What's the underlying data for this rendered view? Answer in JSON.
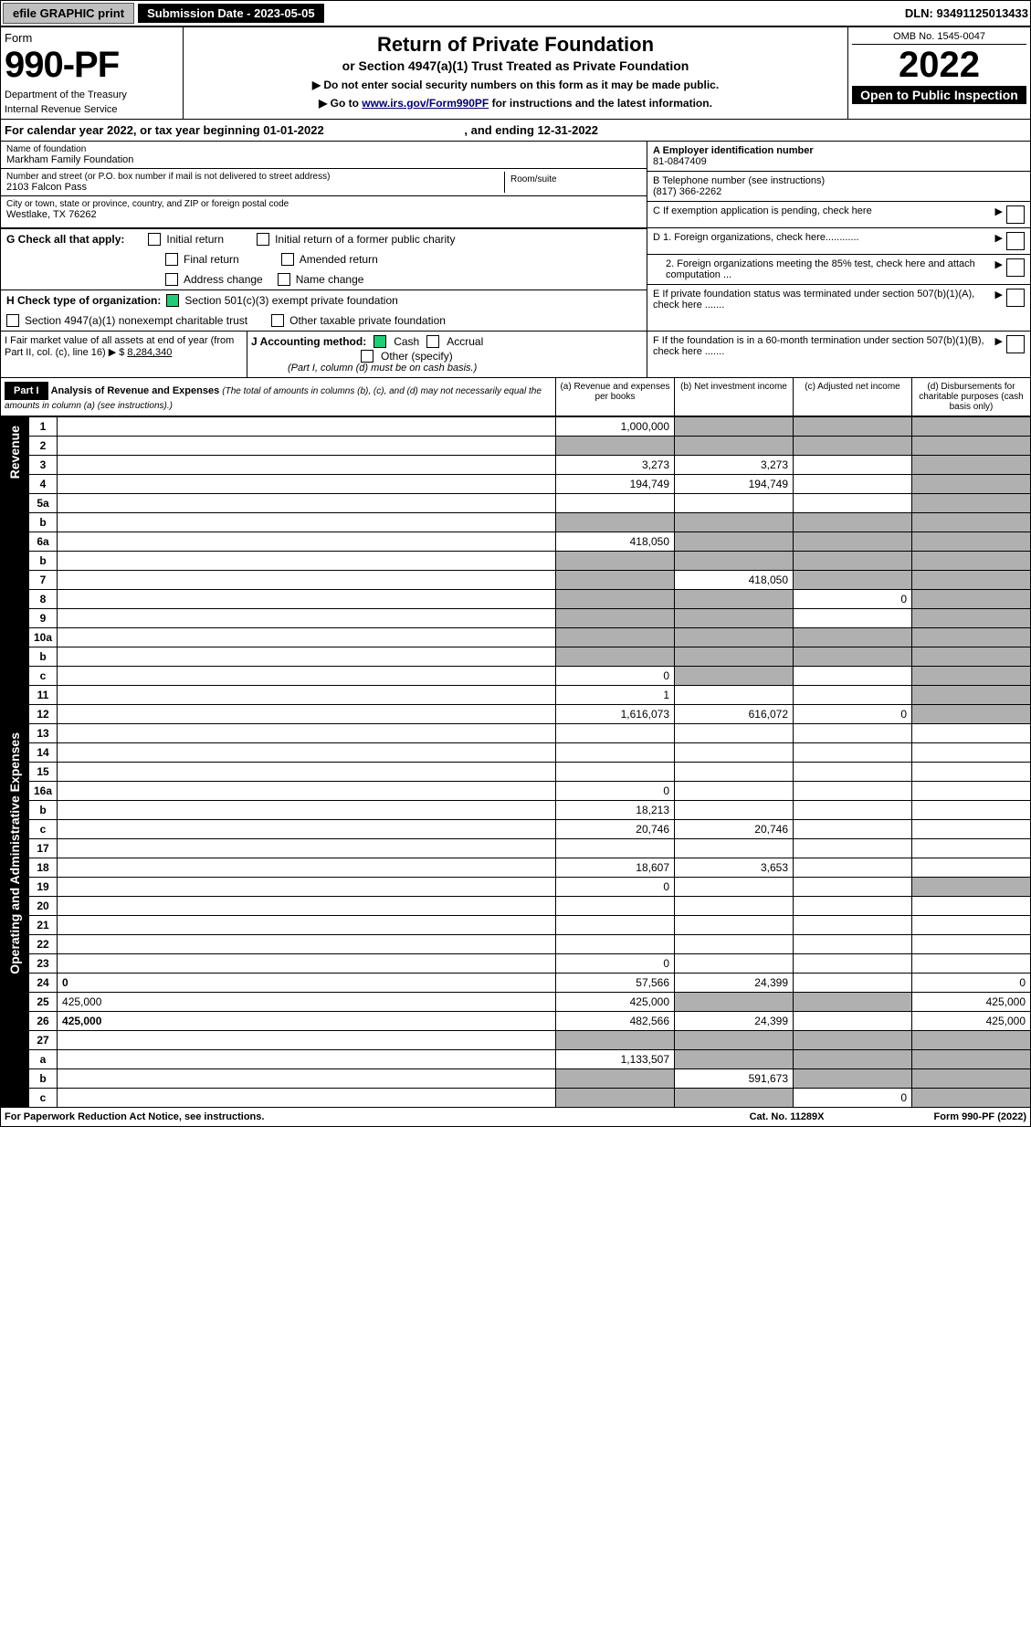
{
  "topbar": {
    "efile": "efile GRAPHIC print",
    "submission": "Submission Date - 2023-05-05",
    "dln": "DLN: 93491125013433"
  },
  "header": {
    "form": "Form",
    "formnum": "990-PF",
    "dept": "Department of the Treasury",
    "irs": "Internal Revenue Service",
    "title": "Return of Private Foundation",
    "sub1": "or Section 4947(a)(1) Trust Treated as Private Foundation",
    "sub2a": "▶ Do not enter social security numbers on this form as it may be made public.",
    "sub2b": "▶ Go to ",
    "link": "www.irs.gov/Form990PF",
    "sub2c": " for instructions and the latest information.",
    "omb": "OMB No. 1545-0047",
    "year": "2022",
    "open": "Open to Public Inspection"
  },
  "calyear": {
    "a": "For calendar year 2022, or tax year beginning 01-01-2022",
    "b": ", and ending 12-31-2022"
  },
  "entity": {
    "name_label": "Name of foundation",
    "name": "Markham Family Foundation",
    "addr_label": "Number and street (or P.O. box number if mail is not delivered to street address)",
    "addr": "2103 Falcon Pass",
    "room_label": "Room/suite",
    "city_label": "City or town, state or province, country, and ZIP or foreign postal code",
    "city": "Westlake, TX  76262"
  },
  "right": {
    "a_label": "A Employer identification number",
    "a": "81-0847409",
    "b_label": "B Telephone number (see instructions)",
    "b": "(817) 366-2262",
    "c": "C If exemption application is pending, check here",
    "d1": "D 1. Foreign organizations, check here............",
    "d2": "2. Foreign organizations meeting the 85% test, check here and attach computation ...",
    "e": "E  If private foundation status was terminated under section 507(b)(1)(A), check here .......",
    "f": "F  If the foundation is in a 60-month termination under section 507(b)(1)(B), check here ......."
  },
  "g": {
    "label": "G Check all that apply:",
    "initial": "Initial return",
    "initial_former": "Initial return of a former public charity",
    "final": "Final return",
    "amended": "Amended return",
    "addrchg": "Address change",
    "namechg": "Name change"
  },
  "h": {
    "label": "H Check type of organization:",
    "c3": "Section 501(c)(3) exempt private foundation",
    "4947": "Section 4947(a)(1) nonexempt charitable trust",
    "other_tax": "Other taxable private foundation"
  },
  "i": {
    "label": "I Fair market value of all assets at end of year (from Part II, col. (c), line 16) ▶ $",
    "val": "8,284,340"
  },
  "j": {
    "label": "J Accounting method:",
    "cash": "Cash",
    "accrual": "Accrual",
    "other": "Other (specify)",
    "note": "(Part I, column (d) must be on cash basis.)"
  },
  "part1": {
    "label": "Part I",
    "title": "Analysis of Revenue and Expenses",
    "note": "(The total of amounts in columns (b), (c), and (d) may not necessarily equal the amounts in column (a) (see instructions).)",
    "cola": "(a)  Revenue and expenses per books",
    "colb": "(b)  Net investment income",
    "colc": "(c)  Adjusted net income",
    "cold": "(d)  Disbursements for charitable purposes (cash basis only)"
  },
  "side": {
    "revenue": "Revenue",
    "expenses": "Operating and Administrative Expenses"
  },
  "rows": [
    {
      "n": "1",
      "d": "",
      "a": "1,000,000",
      "b": "",
      "c": "",
      "sb": true,
      "sc": true,
      "sd": true
    },
    {
      "n": "2",
      "d": "",
      "a": "",
      "b": "",
      "c": "",
      "sa": true,
      "sb": true,
      "sc": true,
      "sd": true
    },
    {
      "n": "3",
      "d": "",
      "a": "3,273",
      "b": "3,273",
      "c": "",
      "sd": true
    },
    {
      "n": "4",
      "d": "",
      "a": "194,749",
      "b": "194,749",
      "c": "",
      "sd": true
    },
    {
      "n": "5a",
      "d": "",
      "a": "",
      "b": "",
      "c": "",
      "sd": true
    },
    {
      "n": "b",
      "d": "",
      "a": "",
      "b": "",
      "c": "",
      "sa": true,
      "sb": true,
      "sc": true,
      "sd": true
    },
    {
      "n": "6a",
      "d": "",
      "a": "418,050",
      "b": "",
      "c": "",
      "sb": true,
      "sc": true,
      "sd": true
    },
    {
      "n": "b",
      "d": "",
      "a": "",
      "b": "",
      "c": "",
      "sa": true,
      "sb": true,
      "sc": true,
      "sd": true
    },
    {
      "n": "7",
      "d": "",
      "a": "",
      "b": "418,050",
      "c": "",
      "sa": true,
      "sc": true,
      "sd": true
    },
    {
      "n": "8",
      "d": "",
      "a": "",
      "b": "",
      "c": "0",
      "sa": true,
      "sb": true,
      "sd": true
    },
    {
      "n": "9",
      "d": "",
      "a": "",
      "b": "",
      "c": "",
      "sa": true,
      "sb": true,
      "sd": true
    },
    {
      "n": "10a",
      "d": "",
      "a": "",
      "b": "",
      "c": "",
      "sa": true,
      "sb": true,
      "sc": true,
      "sd": true
    },
    {
      "n": "b",
      "d": "",
      "a": "",
      "b": "",
      "c": "",
      "sa": true,
      "sb": true,
      "sc": true,
      "sd": true
    },
    {
      "n": "c",
      "d": "",
      "a": "0",
      "b": "",
      "c": "",
      "sb": true,
      "sd": true
    },
    {
      "n": "11",
      "d": "",
      "a": "1",
      "b": "",
      "c": "",
      "sd": true
    },
    {
      "n": "12",
      "d": "",
      "a": "1,616,073",
      "b": "616,072",
      "c": "0",
      "bold": true,
      "sd": true
    },
    {
      "n": "13",
      "d": "",
      "a": "",
      "b": "",
      "c": ""
    },
    {
      "n": "14",
      "d": "",
      "a": "",
      "b": "",
      "c": ""
    },
    {
      "n": "15",
      "d": "",
      "a": "",
      "b": "",
      "c": ""
    },
    {
      "n": "16a",
      "d": "",
      "a": "0",
      "b": "",
      "c": ""
    },
    {
      "n": "b",
      "d": "",
      "a": "18,213",
      "b": "",
      "c": ""
    },
    {
      "n": "c",
      "d": "",
      "a": "20,746",
      "b": "20,746",
      "c": ""
    },
    {
      "n": "17",
      "d": "",
      "a": "",
      "b": "",
      "c": ""
    },
    {
      "n": "18",
      "d": "",
      "a": "18,607",
      "b": "3,653",
      "c": ""
    },
    {
      "n": "19",
      "d": "",
      "a": "0",
      "b": "",
      "c": "",
      "sd": true
    },
    {
      "n": "20",
      "d": "",
      "a": "",
      "b": "",
      "c": ""
    },
    {
      "n": "21",
      "d": "",
      "a": "",
      "b": "",
      "c": ""
    },
    {
      "n": "22",
      "d": "",
      "a": "",
      "b": "",
      "c": ""
    },
    {
      "n": "23",
      "d": "",
      "a": "0",
      "b": "",
      "c": ""
    },
    {
      "n": "24",
      "d": "0",
      "a": "57,566",
      "b": "24,399",
      "c": "",
      "bold": true
    },
    {
      "n": "25",
      "d": "425,000",
      "a": "425,000",
      "b": "",
      "c": "",
      "sb": true,
      "sc": true
    },
    {
      "n": "26",
      "d": "425,000",
      "a": "482,566",
      "b": "24,399",
      "c": "",
      "bold": true
    },
    {
      "n": "27",
      "d": "",
      "a": "",
      "b": "",
      "c": "",
      "sa": true,
      "sb": true,
      "sc": true,
      "sd": true
    },
    {
      "n": "a",
      "d": "",
      "a": "1,133,507",
      "b": "",
      "c": "",
      "bold": true,
      "sb": true,
      "sc": true,
      "sd": true
    },
    {
      "n": "b",
      "d": "",
      "a": "",
      "b": "591,673",
      "c": "",
      "bold": true,
      "sa": true,
      "sc": true,
      "sd": true
    },
    {
      "n": "c",
      "d": "",
      "a": "",
      "b": "",
      "c": "0",
      "bold": true,
      "sa": true,
      "sb": true,
      "sd": true
    }
  ],
  "footer": {
    "left": "For Paperwork Reduction Act Notice, see instructions.",
    "mid": "Cat. No. 11289X",
    "right": "Form 990-PF (2022)"
  }
}
